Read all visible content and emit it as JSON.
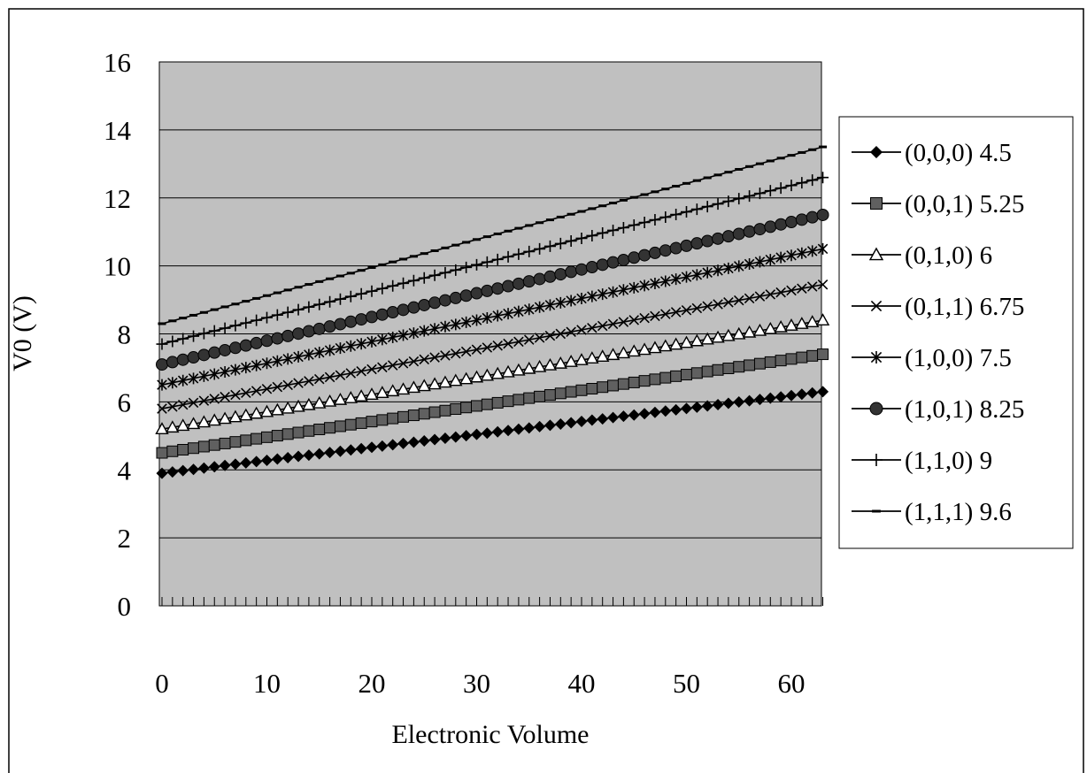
{
  "chart_data": {
    "type": "line",
    "xlabel": "Electronic Volume",
    "ylabel": "V0 (V)",
    "ylim": [
      0,
      16
    ],
    "xlim": [
      0,
      63
    ],
    "y_ticks": [
      0,
      2,
      4,
      6,
      8,
      10,
      12,
      14,
      16
    ],
    "x_ticks": [
      0,
      10,
      20,
      30,
      40,
      50,
      60
    ],
    "x_step": 1,
    "grid": "horizontal",
    "plot_background": "#c0c0c0",
    "legend_position": "right",
    "series": [
      {
        "name": "(0,0,0) 4.5",
        "marker": "diamond",
        "start": 3.9,
        "end": 6.3
      },
      {
        "name": "(0,0,1) 5.25",
        "marker": "square",
        "start": 4.5,
        "end": 7.4
      },
      {
        "name": "(0,1,0) 6",
        "marker": "triangle",
        "start": 5.2,
        "end": 8.4
      },
      {
        "name": "(0,1,1) 6.75",
        "marker": "x",
        "start": 5.8,
        "end": 9.45
      },
      {
        "name": "(1,0,0) 7.5",
        "marker": "star",
        "start": 6.5,
        "end": 10.5
      },
      {
        "name": "(1,0,1) 8.25",
        "marker": "circle",
        "start": 7.1,
        "end": 11.5
      },
      {
        "name": "(1,1,0) 9",
        "marker": "plus",
        "start": 7.7,
        "end": 12.6
      },
      {
        "name": "(1,1,1) 9.6",
        "marker": "dash",
        "start": 8.3,
        "end": 13.5
      }
    ]
  }
}
